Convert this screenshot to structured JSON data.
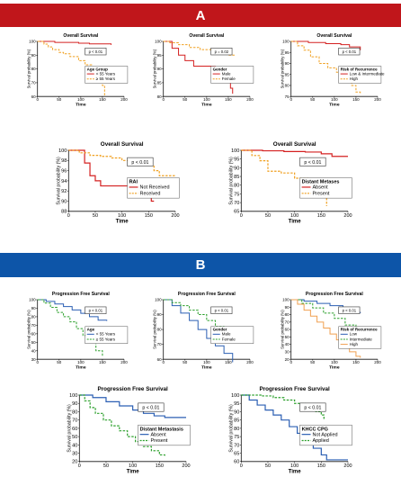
{
  "banners": {
    "a": {
      "label": "A",
      "color": "#c0161b"
    },
    "b": {
      "label": "B",
      "color": "#0d55a8"
    }
  },
  "chart_data": [
    {
      "panel": "A",
      "type": "line",
      "title": "Overall Survival",
      "xlabel": "Time",
      "ylabel": "Survival probability (%)",
      "xlim": [
        0,
        200
      ],
      "ylim": [
        60,
        100
      ],
      "xticks": [
        0,
        50,
        100,
        150,
        200
      ],
      "yticks": [
        60,
        70,
        80,
        90,
        100
      ],
      "pvalue": "p < 0.01",
      "legend_title": "Age Group",
      "series": [
        {
          "name": "< 55 Years",
          "color": "#d42020",
          "dash": false,
          "x": [
            0,
            40,
            65,
            95,
            120,
            140,
            170
          ],
          "y": [
            100,
            99.3,
            99.3,
            98.7,
            98.2,
            98.2,
            97.5
          ]
        },
        {
          "name": "≥ 55 Years",
          "color": "#f0a020",
          "dash": true,
          "x": [
            0,
            15,
            25,
            35,
            50,
            60,
            75,
            95,
            110,
            125,
            145,
            150,
            155
          ],
          "y": [
            100,
            98,
            96,
            94,
            92,
            91,
            89,
            86,
            83,
            80,
            74,
            68,
            60
          ]
        }
      ]
    },
    {
      "panel": "A",
      "type": "line",
      "title": "Overall Survival",
      "xlabel": "Time",
      "ylabel": "Survival probability (%)",
      "xlim": [
        0,
        200
      ],
      "ylim": [
        80,
        100
      ],
      "xticks": [
        0,
        50,
        100,
        150,
        200
      ],
      "yticks": [
        80,
        85,
        90,
        95,
        100
      ],
      "pvalue": "p = 0.02",
      "legend_title": "Gender",
      "series": [
        {
          "name": "Male",
          "color": "#d42020",
          "dash": false,
          "x": [
            0,
            20,
            35,
            50,
            70,
            100,
            120,
            140,
            150,
            155,
            160
          ],
          "y": [
            100,
            97.5,
            95,
            93,
            91,
            91,
            90,
            88,
            86,
            83,
            81
          ]
        },
        {
          "name": "Female",
          "color": "#f0a020",
          "dash": true,
          "x": [
            0,
            15,
            35,
            60,
            85,
            110,
            130,
            150,
            165
          ],
          "y": [
            100,
            99.5,
            98.8,
            97.8,
            97,
            96.5,
            96,
            95,
            95
          ]
        }
      ]
    },
    {
      "panel": "A",
      "type": "line",
      "title": "Overall Survival",
      "xlabel": "Time",
      "ylabel": "Survival probability (%)",
      "xlim": [
        0,
        200
      ],
      "ylim": [
        75,
        100
      ],
      "xticks": [
        0,
        50,
        100,
        150,
        200
      ],
      "yticks": [
        75,
        80,
        85,
        90,
        95,
        100
      ],
      "pvalue": "p < 0.01",
      "legend_title": "Risk of Recurrence",
      "series": [
        {
          "name": "Low & Intermediate",
          "color": "#d42020",
          "dash": false,
          "x": [
            0,
            40,
            80,
            115,
            135,
            160
          ],
          "y": [
            100,
            99.5,
            99,
            98.5,
            97.5,
            96
          ]
        },
        {
          "name": "High",
          "color": "#f0a020",
          "dash": true,
          "x": [
            0,
            15,
            30,
            45,
            65,
            85,
            105,
            120,
            140,
            150,
            160
          ],
          "y": [
            100,
            98,
            96,
            93,
            90,
            88,
            86,
            84,
            80,
            77,
            76
          ]
        }
      ]
    },
    {
      "panel": "A",
      "type": "line",
      "title": "Overall Survival",
      "xlabel": "Time",
      "ylabel": "Survival probability (%)",
      "xlim": [
        0,
        200
      ],
      "ylim": [
        88,
        100
      ],
      "xticks": [
        0,
        50,
        100,
        150,
        200
      ],
      "yticks": [
        88,
        90,
        92,
        94,
        96,
        98,
        100
      ],
      "pvalue": "p < 0.01",
      "legend_title": "RAI",
      "series": [
        {
          "name": "Not Received",
          "color": "#d42020",
          "dash": false,
          "x": [
            0,
            30,
            40,
            50,
            60,
            150,
            155,
            160
          ],
          "y": [
            100,
            97.5,
            95,
            94,
            93,
            93,
            90,
            90
          ]
        },
        {
          "name": "Received",
          "color": "#f0a020",
          "dash": true,
          "x": [
            0,
            20,
            40,
            60,
            80,
            100,
            120,
            140,
            160,
            170,
            200
          ],
          "y": [
            100,
            99.5,
            99,
            98.8,
            98.5,
            98,
            97.5,
            97,
            96,
            95,
            95
          ]
        }
      ]
    },
    {
      "panel": "A",
      "type": "line",
      "title": "Overall Survival",
      "xlabel": "Time",
      "ylabel": "Survival probability (%)",
      "xlim": [
        0,
        200
      ],
      "ylim": [
        65,
        100
      ],
      "xticks": [
        0,
        50,
        100,
        150,
        200
      ],
      "yticks": [
        65,
        70,
        75,
        80,
        85,
        90,
        95,
        100
      ],
      "pvalue": "p < 0.01",
      "legend_title": "Distant Metases",
      "series": [
        {
          "name": "Absent",
          "color": "#d42020",
          "dash": false,
          "x": [
            0,
            40,
            80,
            120,
            150,
            170,
            200
          ],
          "y": [
            100,
            99.7,
            99.3,
            99,
            98,
            96.5,
            96.5
          ]
        },
        {
          "name": "Present",
          "color": "#f0a020",
          "dash": true,
          "x": [
            0,
            20,
            35,
            50,
            75,
            100,
            125,
            140,
            150,
            160
          ],
          "y": [
            100,
            97,
            94,
            88,
            87,
            84,
            80,
            80,
            75,
            68
          ]
        }
      ]
    },
    {
      "panel": "B",
      "type": "line",
      "title": "Progression Free Survival",
      "xlabel": "Time",
      "ylabel": "Survival probability (%)",
      "xlim": [
        0,
        200
      ],
      "ylim": [
        30,
        100
      ],
      "xticks": [
        0,
        50,
        100,
        150,
        200
      ],
      "yticks": [
        30,
        40,
        50,
        60,
        70,
        80,
        90,
        100
      ],
      "pvalue": "p < 0.01",
      "legend_title": "Age",
      "series": [
        {
          "name": "< 55 Years",
          "color": "#2b5fb3",
          "dash": false,
          "x": [
            0,
            20,
            40,
            60,
            80,
            100,
            120,
            140,
            160
          ],
          "y": [
            100,
            98,
            95,
            92,
            88,
            84,
            80,
            76,
            75
          ]
        },
        {
          "name": "≥ 55 Years",
          "color": "#2ca02c",
          "dash": true,
          "x": [
            0,
            15,
            30,
            45,
            60,
            75,
            90,
            105,
            120,
            135,
            150
          ],
          "y": [
            100,
            96,
            91,
            85,
            80,
            74,
            66,
            58,
            50,
            40,
            33
          ]
        }
      ]
    },
    {
      "panel": "B",
      "type": "line",
      "title": "Progression Free Survival",
      "xlabel": "Time",
      "ylabel": "Survival probability (%)",
      "xlim": [
        0,
        200
      ],
      "ylim": [
        60,
        100
      ],
      "xticks": [
        0,
        50,
        100,
        150,
        200
      ],
      "yticks": [
        60,
        70,
        80,
        90,
        100
      ],
      "pvalue": "p < 0.01",
      "legend_title": "Gender",
      "series": [
        {
          "name": "Male",
          "color": "#2b5fb3",
          "dash": false,
          "x": [
            0,
            20,
            40,
            60,
            80,
            100,
            120,
            140,
            160
          ],
          "y": [
            100,
            96,
            91,
            86,
            80,
            74,
            69,
            64,
            58
          ]
        },
        {
          "name": "Female",
          "color": "#2ca02c",
          "dash": true,
          "x": [
            0,
            20,
            40,
            60,
            80,
            100,
            120,
            140,
            150,
            165
          ],
          "y": [
            100,
            98,
            96,
            93,
            90,
            86,
            82,
            78,
            75,
            75
          ]
        }
      ]
    },
    {
      "panel": "B",
      "type": "line",
      "title": "Progression Free Survival",
      "xlabel": "Time",
      "ylabel": "Survival probability (%)",
      "xlim": [
        0,
        200
      ],
      "ylim": [
        20,
        100
      ],
      "xticks": [
        0,
        50,
        100,
        150,
        200
      ],
      "yticks": [
        20,
        30,
        40,
        50,
        60,
        70,
        80,
        90,
        100
      ],
      "pvalue": "p < 0.01",
      "legend_title": "Risk of Recurrence",
      "series": [
        {
          "name": "Low",
          "color": "#2b5fb3",
          "dash": false,
          "x": [
            0,
            30,
            60,
            90,
            120,
            150,
            160
          ],
          "y": [
            100,
            98,
            95,
            92,
            88,
            83,
            82
          ]
        },
        {
          "name": "Intermediate",
          "color": "#2ca02c",
          "dash": true,
          "x": [
            0,
            25,
            50,
            75,
            100,
            125,
            150,
            160
          ],
          "y": [
            100,
            95,
            89,
            82,
            75,
            66,
            60,
            58
          ]
        },
        {
          "name": "High",
          "color": "#f0a050",
          "dash": false,
          "x": [
            0,
            15,
            30,
            45,
            60,
            75,
            90,
            105,
            120,
            135,
            150,
            160
          ],
          "y": [
            100,
            94,
            86,
            78,
            70,
            62,
            54,
            46,
            38,
            30,
            24,
            22
          ]
        }
      ]
    },
    {
      "panel": "B",
      "type": "line",
      "title": "Progression Free Survival",
      "xlabel": "Time",
      "ylabel": "Survival probability (%)",
      "xlim": [
        0,
        200
      ],
      "ylim": [
        20,
        100
      ],
      "xticks": [
        0,
        50,
        100,
        150,
        200
      ],
      "yticks": [
        20,
        30,
        40,
        50,
        60,
        70,
        80,
        90,
        100
      ],
      "pvalue": "p < 0.01",
      "legend_title": "Distant Metastasis",
      "series": [
        {
          "name": "Absent",
          "color": "#2b5fb3",
          "dash": false,
          "x": [
            0,
            25,
            50,
            75,
            100,
            120,
            140,
            160,
            200
          ],
          "y": [
            100,
            97,
            92,
            87,
            82,
            78,
            75,
            73,
            73
          ]
        },
        {
          "name": "Present",
          "color": "#2ca02c",
          "dash": true,
          "x": [
            0,
            10,
            20,
            30,
            45,
            60,
            75,
            90,
            105,
            120,
            135,
            150,
            160
          ],
          "y": [
            100,
            93,
            85,
            78,
            70,
            63,
            57,
            50,
            44,
            38,
            33,
            28,
            27
          ]
        }
      ]
    },
    {
      "panel": "B",
      "type": "line",
      "title": "Progression Free Survival",
      "xlabel": "Time",
      "ylabel": "Survival probability (%)",
      "xlim": [
        0,
        200
      ],
      "ylim": [
        60,
        100
      ],
      "xticks": [
        0,
        50,
        100,
        150,
        200
      ],
      "yticks": [
        60,
        65,
        70,
        75,
        80,
        85,
        90,
        95,
        100
      ],
      "pvalue": "p < 0.01",
      "legend_title": "KHCC CPG",
      "series": [
        {
          "name": "Not Applied",
          "color": "#2b5fb3",
          "dash": false,
          "x": [
            0,
            15,
            30,
            45,
            60,
            75,
            90,
            105,
            120,
            135,
            150,
            160,
            200
          ],
          "y": [
            100,
            97,
            94,
            91,
            88,
            85,
            81,
            77,
            73,
            68,
            64,
            61,
            61
          ]
        },
        {
          "name": "Applied",
          "color": "#2ca02c",
          "dash": true,
          "x": [
            0,
            40,
            60,
            80,
            100,
            120,
            140,
            150,
            155
          ],
          "y": [
            100,
            99.5,
            98.5,
            97,
            95,
            93,
            90,
            88,
            85
          ]
        }
      ]
    }
  ]
}
